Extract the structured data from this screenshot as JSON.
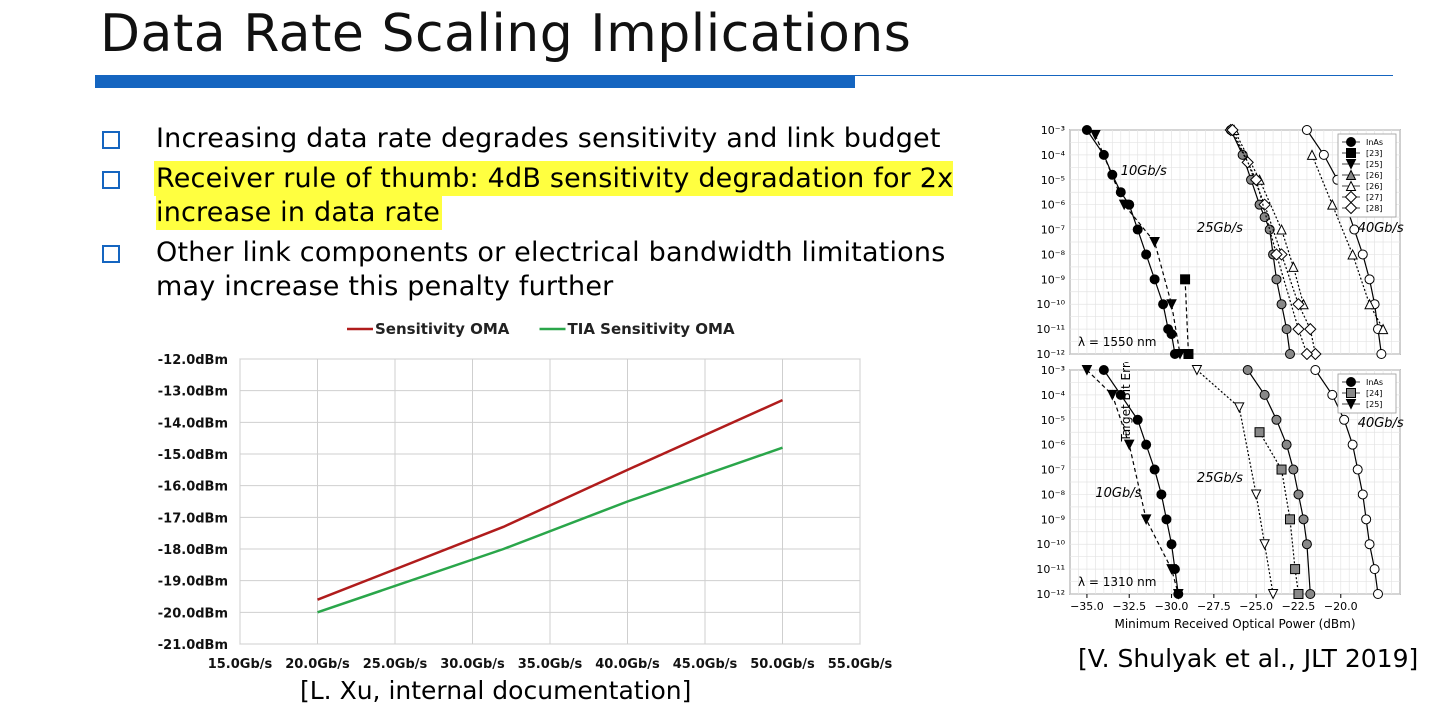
{
  "slide": {
    "title": "Data Rate Scaling Implications",
    "bullets": [
      "Increasing data rate degrades sensitivity and link budget",
      "Receiver rule of thumb: 4dB sensitivity degradation for 2x increase in data rate",
      "Other link components or electrical bandwidth limitations may increase this penalty further"
    ],
    "accent_color": "#1565c0",
    "highlight_color": "#ffff40"
  },
  "left_caption": "[L. Xu, internal documentation]",
  "right_caption": "[V. Shulyak et al., JLT 2019]",
  "chart_data": [
    {
      "type": "line",
      "title": "",
      "xlabel": "",
      "ylabel": "",
      "categories": [
        "15.0Gb/s",
        "20.0Gb/s",
        "25.0Gb/s",
        "30.0Gb/s",
        "35.0Gb/s",
        "40.0Gb/s",
        "45.0Gb/s",
        "50.0Gb/s",
        "55.0Gb/s"
      ],
      "yticks": [
        "-12.0dBm",
        "-13.0dBm",
        "-14.0dBm",
        "-15.0dBm",
        "-16.0dBm",
        "-17.0dBm",
        "-18.0dBm",
        "-19.0dBm",
        "-20.0dBm",
        "-21.0dBm"
      ],
      "xlim": [
        15,
        55
      ],
      "ylim": [
        -21,
        -12
      ],
      "grid": true,
      "legend_position": "top",
      "series": [
        {
          "name": "Sensitivity OMA",
          "color": "#b01c1c",
          "x": [
            20,
            32,
            40,
            50
          ],
          "y": [
            -19.6,
            -17.3,
            -15.5,
            -13.3
          ]
        },
        {
          "name": "TIA Sensitivity OMA",
          "color": "#2aa64a",
          "x": [
            20,
            32,
            40,
            50
          ],
          "y": [
            -20.0,
            -18.0,
            -16.5,
            -14.8
          ]
        }
      ]
    },
    {
      "type": "line",
      "title": "λ = 1550 nm",
      "xlabel": "",
      "ylabel": "Target Bit Error Rate (BER)",
      "xlim": [
        -36,
        -16.5
      ],
      "ylim": [
        -12,
        -3
      ],
      "yticks": [
        "10⁻³",
        "10⁻⁴",
        "10⁻⁵",
        "10⁻⁶",
        "10⁻⁷",
        "10⁻⁸",
        "10⁻⁹",
        "10⁻¹⁰",
        "10⁻¹¹",
        "10⁻¹²"
      ],
      "legend": [
        "InAs",
        "[23]",
        "[25]",
        "[26]",
        "[26]",
        "[27]",
        "[28]"
      ],
      "annotations": [
        "10Gb/s",
        "25Gb/s",
        "40Gb/s"
      ],
      "series": [
        {
          "name": "InAs 10Gb/s",
          "marker": "circle-filled",
          "x": [
            -35.0,
            -34.0,
            -33.5,
            -33.0,
            -32.5,
            -32.0,
            -31.5,
            -31.0,
            -30.5,
            -30.2,
            -30.0,
            -29.8
          ],
          "y": [
            -3,
            -4,
            -4.8,
            -5.5,
            -6,
            -7,
            -8,
            -9,
            -10,
            -11,
            -11.2,
            -12
          ]
        },
        {
          "name": "[23] 10Gb/s",
          "marker": "square-filled",
          "x": [
            -29.2,
            -29.0
          ],
          "y": [
            -9,
            -12
          ]
        },
        {
          "name": "[25] 10Gb/s",
          "marker": "triangle-down-filled",
          "x": [
            -34.5,
            -32.8,
            -31.0,
            -30.0,
            -29.5
          ],
          "y": [
            -3.2,
            -6,
            -7.5,
            -10,
            -12
          ]
        },
        {
          "name": "InAs 25Gb/s",
          "marker": "circle-grey",
          "x": [
            -26.5,
            -25.8,
            -25.3,
            -24.8,
            -24.5,
            -24.2,
            -24.0,
            -23.8,
            -23.5,
            -23.2,
            -23.0
          ],
          "y": [
            -3,
            -4,
            -5,
            -6,
            -6.5,
            -7,
            -8,
            -9,
            -10,
            -11,
            -12
          ]
        },
        {
          "name": "[26] 25Gb/s",
          "marker": "triangle-up-open",
          "x": [
            -26.3,
            -24.8,
            -23.5,
            -22.8,
            -22.2
          ],
          "y": [
            -3,
            -5,
            -7,
            -8.5,
            -10
          ]
        },
        {
          "name": "[27] 25Gb/s",
          "marker": "diamond-open",
          "x": [
            -26.5,
            -25.5,
            -24.5,
            -23.5,
            -22.5,
            -21.8,
            -21.5
          ],
          "y": [
            -3,
            -4.3,
            -6,
            -8,
            -10,
            -11,
            -12
          ]
        },
        {
          "name": "[28] 25Gb/s",
          "marker": "diamond-open",
          "x": [
            -26.4,
            -25.0,
            -23.8,
            -22.5,
            -22.0
          ],
          "y": [
            -3,
            -5,
            -8,
            -11,
            -12
          ]
        },
        {
          "name": "InAs 40Gb/s",
          "marker": "circle-open",
          "x": [
            -22.0,
            -21.0,
            -20.2,
            -19.7,
            -19.2,
            -18.7,
            -18.3,
            -18.0,
            -17.8,
            -17.6
          ],
          "y": [
            -3,
            -4,
            -5,
            -6,
            -7,
            -8,
            -9,
            -10,
            -11,
            -12
          ]
        },
        {
          "name": "[26] 40Gb/s",
          "marker": "triangle-up-open",
          "x": [
            -21.7,
            -20.5,
            -19.3,
            -18.3,
            -17.5
          ],
          "y": [
            -4,
            -6,
            -8,
            -10,
            -11
          ]
        }
      ]
    },
    {
      "type": "line",
      "title": "λ = 1310 nm",
      "xlabel": "Minimum Received Optical Power (dBm)",
      "ylabel": "Target Bit Error Rate (BER)",
      "xlim": [
        -36,
        -16.5
      ],
      "ylim": [
        -12,
        -3
      ],
      "xticks": [
        "−35.0",
        "−32.5",
        "−30.0",
        "−27.5",
        "−25.0",
        "−22.5",
        "−20.0"
      ],
      "yticks": [
        "10⁻³",
        "10⁻⁴",
        "10⁻⁵",
        "10⁻⁶",
        "10⁻⁷",
        "10⁻⁸",
        "10⁻⁹",
        "10⁻¹⁰",
        "10⁻¹¹",
        "10⁻¹²"
      ],
      "legend": [
        "InAs",
        "[24]",
        "[25]"
      ],
      "annotations": [
        "10Gb/s",
        "25Gb/s",
        "40Gb/s"
      ],
      "series": [
        {
          "name": "InAs 10Gb/s",
          "marker": "circle-filled",
          "x": [
            -34.0,
            -33.0,
            -32.0,
            -31.5,
            -31.0,
            -30.6,
            -30.3,
            -30.0,
            -29.8,
            -29.6
          ],
          "y": [
            -3,
            -4,
            -5,
            -6,
            -7,
            -8,
            -9,
            -10,
            -11,
            -12
          ]
        },
        {
          "name": "[25] 10Gb/s",
          "marker": "triangle-down-filled",
          "x": [
            -35.0,
            -33.5,
            -32.5,
            -31.5,
            -30.0,
            -29.6
          ],
          "y": [
            -3,
            -4,
            -6,
            -9,
            -11,
            -12
          ]
        },
        {
          "name": "InAs 25Gb/s",
          "marker": "circle-grey",
          "x": [
            -25.5,
            -24.5,
            -23.8,
            -23.2,
            -22.8,
            -22.5,
            -22.2,
            -22.0,
            -21.8
          ],
          "y": [
            -3,
            -4,
            -5,
            -6,
            -7,
            -8,
            -9,
            -10,
            -12
          ]
        },
        {
          "name": "[24] 25Gb/s",
          "marker": "square-grey",
          "x": [
            -24.8,
            -23.5,
            -23.0,
            -22.7,
            -22.5
          ],
          "y": [
            -5.5,
            -7,
            -9,
            -11,
            -12
          ]
        },
        {
          "name": "[25] 25Gb/s",
          "marker": "triangle-down-open",
          "x": [
            -28.5,
            -26.0,
            -25.0,
            -24.5,
            -24.0
          ],
          "y": [
            -3,
            -4.5,
            -8,
            -10,
            -12
          ]
        },
        {
          "name": "InAs 40Gb/s",
          "marker": "circle-open",
          "x": [
            -21.5,
            -20.5,
            -19.8,
            -19.3,
            -19.0,
            -18.7,
            -18.5,
            -18.3,
            -18.0,
            -17.8
          ],
          "y": [
            -3,
            -4,
            -5,
            -6,
            -7,
            -8,
            -9,
            -10,
            -11,
            -12
          ]
        }
      ]
    }
  ]
}
